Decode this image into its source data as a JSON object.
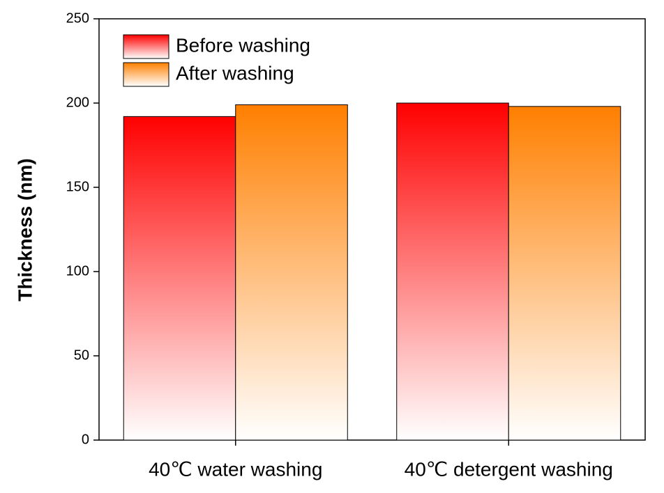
{
  "chart_data": {
    "type": "bar",
    "y_label": "Thickness (nm)",
    "categories": [
      "40℃ water washing",
      "40℃ detergent washing"
    ],
    "series": [
      {
        "name": "Before washing",
        "color": "#ff0000",
        "values": [
          192,
          200
        ]
      },
      {
        "name": "After washing",
        "color": "#ff7f00",
        "values": [
          199,
          198
        ]
      }
    ],
    "ylim": [
      0,
      250
    ],
    "yticks": [
      0,
      50,
      100,
      150,
      200,
      250
    ],
    "legend": "upper left"
  }
}
